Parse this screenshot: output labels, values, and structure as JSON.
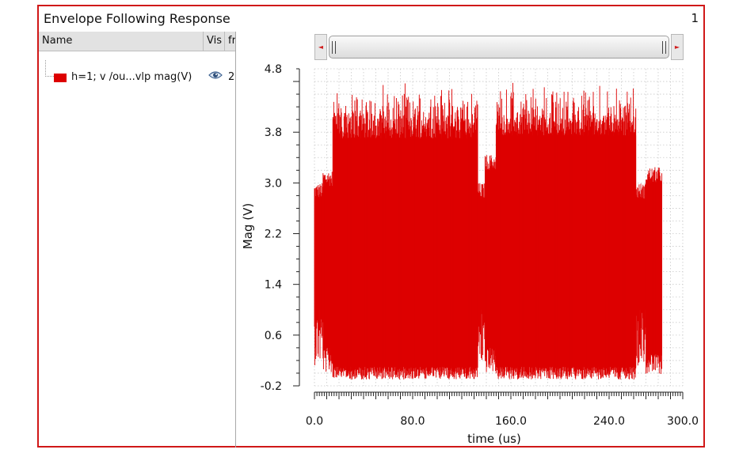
{
  "window": {
    "title": "Envelope Following Response",
    "number": "1"
  },
  "legend_panel": {
    "columns": [
      "Name",
      "Vis",
      "fr"
    ],
    "trace_label": "h=1; v /ou...vlp mag(V)",
    "trace_extra": "2",
    "trace_color": "#dd0000",
    "visibility_icon": "eye-icon"
  },
  "scrollbar": {
    "left_arrow": "◄",
    "right_arrow": "►"
  },
  "chart_data": {
    "type": "line",
    "xlabel": "time (us)",
    "ylabel": "Mag (V)",
    "x_ticks": [
      "0.0",
      "80.0",
      "160.0",
      "240.0",
      "300.0"
    ],
    "y_ticks": [
      "-0.2",
      "0.6",
      "1.4",
      "2.2",
      "3.0",
      "3.8",
      "4.8"
    ],
    "xlim": [
      0,
      300
    ],
    "ylim": [
      -0.2,
      4.8
    ],
    "grid": true,
    "series": [
      {
        "color": "#dd0000",
        "envelope_segments": [
          {
            "x_start": 0,
            "x_end": 7,
            "low": 1.0,
            "high": 2.75
          },
          {
            "x_start": 7,
            "x_end": 15,
            "low": 0.4,
            "high": 2.95
          },
          {
            "x_start": 15,
            "x_end": 133,
            "low": 0.1,
            "high": 3.7
          },
          {
            "x_start": 133,
            "x_end": 139,
            "low": 1.0,
            "high": 2.75
          },
          {
            "x_start": 139,
            "x_end": 148,
            "low": 0.4,
            "high": 3.2
          },
          {
            "x_start": 148,
            "x_end": 262,
            "low": 0.1,
            "high": 3.75
          },
          {
            "x_start": 262,
            "x_end": 270,
            "low": 1.0,
            "high": 2.75
          },
          {
            "x_start": 270,
            "x_end": 283,
            "low": 0.3,
            "high": 3.0
          }
        ],
        "peak_max": 4.6,
        "trough_min": -0.1
      }
    ]
  }
}
